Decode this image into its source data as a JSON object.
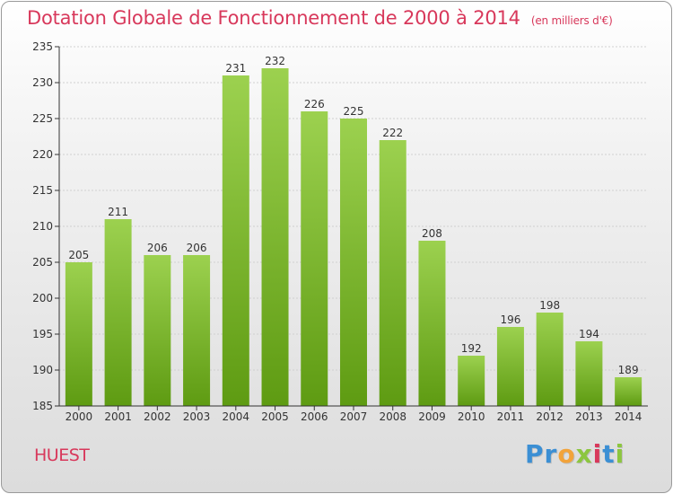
{
  "header": {
    "title": "Dotation Globale de Fonctionnement de 2000 à 2014",
    "subtitle": "(en milliers d'€)"
  },
  "footer": {
    "commune": "HUEST",
    "brand": {
      "text": "Proxiti",
      "letters": [
        {
          "char": "P",
          "color": "#3b8fd4"
        },
        {
          "char": "r",
          "color": "#3b8fd4"
        },
        {
          "char": "o",
          "color": "#f2a33a"
        },
        {
          "char": "x",
          "color": "#8cc63f"
        },
        {
          "char": "i",
          "color": "#d8385b"
        },
        {
          "char": "t",
          "color": "#3b8fd4"
        },
        {
          "char": "i",
          "color": "#8cc63f"
        }
      ]
    }
  },
  "colors": {
    "accent": "#d8385b",
    "bar_top": "#9cd14f",
    "bar_bottom": "#5e9b12",
    "axis": "#333333",
    "grid": "#d0d0d0"
  },
  "chart_data": {
    "type": "bar",
    "categories": [
      "2000",
      "2001",
      "2002",
      "2003",
      "2004",
      "2005",
      "2006",
      "2007",
      "2008",
      "2009",
      "2010",
      "2011",
      "2012",
      "2013",
      "2014"
    ],
    "values": [
      205,
      211,
      206,
      206,
      231,
      232,
      226,
      225,
      222,
      208,
      192,
      196,
      198,
      194,
      189
    ],
    "title": "Dotation Globale de Fonctionnement de 2000 à 2014",
    "subtitle": "(en milliers d'€)",
    "ylim": [
      185,
      235
    ],
    "yticks": [
      185,
      190,
      195,
      200,
      205,
      210,
      215,
      220,
      225,
      230,
      235
    ],
    "grid": true,
    "data_labels": true
  }
}
